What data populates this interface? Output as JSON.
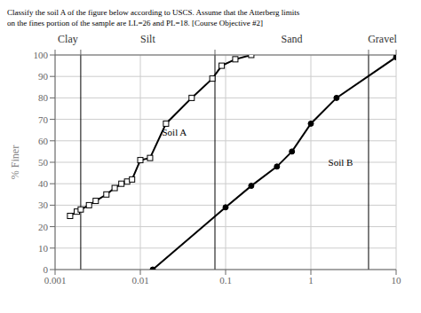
{
  "chart_data": {
    "type": "line",
    "title": "Classify the soil A of the figure below according to USCS. Assume that the Atterberg limits",
    "subtitle": "on the fines portion of the sample are LL=26 and PL=18. [Course Objective #2]",
    "y_label": "% Finer",
    "log": "x",
    "xlim": [
      0.001,
      10
    ],
    "ylim": [
      0,
      100
    ],
    "xticks": [
      0.001,
      0.01,
      0.1,
      1,
      10
    ],
    "yticks": [
      0,
      10,
      20,
      30,
      40,
      50,
      60,
      70,
      80,
      90,
      100
    ],
    "grid": true,
    "series": [
      {
        "name": "Soil A",
        "color": "#000000",
        "marker": "square",
        "x": [
          0.0015,
          0.0018,
          0.002,
          0.0025,
          0.003,
          0.004,
          0.005,
          0.006,
          0.007,
          0.008,
          0.01,
          0.013,
          0.02,
          0.04,
          0.07,
          0.09,
          0.13,
          0.2
        ],
        "values": [
          25,
          27,
          28,
          30,
          32,
          35,
          38,
          40,
          41,
          42,
          51,
          52,
          68,
          80,
          89,
          95,
          98,
          100
        ]
      },
      {
        "name": "Soil B",
        "color": "#000000",
        "marker": "circle",
        "x": [
          0.014,
          0.1,
          0.2,
          0.4,
          0.6,
          1.0,
          2.0,
          10.0
        ],
        "values": [
          0,
          29,
          39,
          48,
          55,
          68,
          80,
          99
        ]
      }
    ],
    "annotations": [
      {
        "text": "Soil A",
        "x": 0.018,
        "y": 64
      },
      {
        "text": "Soil B",
        "x": 1.6,
        "y": 50
      }
    ],
    "vlines": [
      0.002,
      0.075,
      4.75
    ],
    "bands": [
      {
        "label": "Clay",
        "from": 0.001,
        "to": 0.002
      },
      {
        "label": "Silt",
        "from": 0.002,
        "to": 0.075
      },
      {
        "label": "Sand",
        "from": 0.075,
        "to": 4.75
      },
      {
        "label": "Gravel",
        "from": 4.75,
        "to": 10
      }
    ]
  }
}
